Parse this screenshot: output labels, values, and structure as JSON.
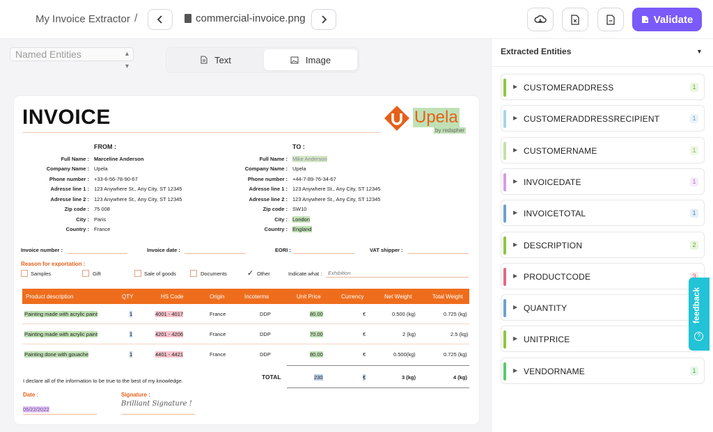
{
  "header": {
    "app_title": "My Invoice Extractor",
    "separator": "/",
    "file_name": "commercial-invoice.png",
    "prev_icon": "chevron-left-icon",
    "next_icon": "chevron-right-icon",
    "download_icon": "cloud-download-icon",
    "excel_icon": "excel-file-icon",
    "doc_icon": "document-icon",
    "validate_label": "Validate",
    "accent": "#7a5af8"
  },
  "view": {
    "select_value": "Named Entities",
    "tabs": [
      {
        "label": "Text",
        "icon": "text-file-icon"
      },
      {
        "label": "Image",
        "icon": "image-icon"
      }
    ]
  },
  "invoice": {
    "title": "INVOICE",
    "logo_text": "Upela",
    "logo_sub": "by redspher",
    "from_header": "FROM :",
    "to_header": "TO :",
    "field_labels": [
      "Full Name :",
      "Company Name :",
      "Phone number :",
      "Adresse line 1 :",
      "Adresse line 2 :",
      "Zip code :",
      "City :",
      "Country :"
    ],
    "from": [
      "Marceline Anderson",
      "Upela",
      "+33-6-56-78-90-67",
      "123 Anywhere St., Any City, ST 12345",
      "123 Anywhere St., Any City, ST 12345",
      "75 008",
      "Paris",
      "France"
    ],
    "to": [
      "Mike Anderson",
      "Upela",
      "+44-7-89-76-34-67",
      "123 Anywhere St., Any City, ST 12345",
      "123 Anywhere St., Any City, ST 12345",
      "SW10",
      "London",
      "England"
    ],
    "invoice_number_label": "Invoice number :",
    "invoice_date_label": "Invoice date :",
    "eori_label": "EORI :",
    "vat_label": "VAT shipper :",
    "reason_label": "Reason for exportation :",
    "reasons": [
      "Samples",
      "Gift",
      "Sale of goods",
      "Documents",
      "Other"
    ],
    "indicate_label": "Indicate what :",
    "indicate_value": "Exhibition",
    "columns": [
      "Product description",
      "QTY",
      "HS Code",
      "Origin",
      "Incoterms",
      "Unit Price",
      "Currency",
      "Net Weight",
      "Total Weight"
    ],
    "rows": [
      {
        "desc": "Painting made with acrylic paint",
        "qty": "1",
        "hs": "4001 - 4017",
        "origin": "France",
        "inco": "DDP",
        "price": "80.00",
        "currency": "€",
        "net": "0.500 (kg)",
        "total": "0.725 (kg)"
      },
      {
        "desc": "Painting made with acrylic paint",
        "qty": "1",
        "hs": "4201 - 4206",
        "origin": "France",
        "inco": "DDP",
        "price": "70.00",
        "currency": "€",
        "net": "2 (kg)",
        "total": "2.5 (kg)"
      },
      {
        "desc": "Painting done with gouache",
        "qty": "1",
        "hs": "4401 - 4421",
        "origin": "France",
        "inco": "DDP",
        "price": "80.00",
        "currency": "€",
        "net": "0.500(kg)",
        "total": "0.725 (kg)"
      }
    ],
    "declaration": "I declare all of the information to be true to the best of my knowledge.",
    "total_label": "TOTAL",
    "total_price": "230",
    "total_currency": "€",
    "total_net": "3 (kg)",
    "total_weight": "4 (kg)",
    "date_label": "Date :",
    "date_value": "05/22/2022",
    "signature_label": "Signature :",
    "signature_value": "Brilliant Signature !"
  },
  "panel": {
    "title": "Extracted Entities",
    "entities": [
      {
        "name": "CUSTOMERADDRESS",
        "count": "1",
        "color": "#8cc63f",
        "badge_bg": "#eaf6df",
        "badge_fg": "#6aa832"
      },
      {
        "name": "CUSTOMERADDRESSRECIPIENT",
        "count": "1",
        "color": "#a8d4e6",
        "badge_bg": "#eaf3f8",
        "badge_fg": "#6a9db5"
      },
      {
        "name": "CUSTOMERNAME",
        "count": "1",
        "color": "#c3e0a6",
        "badge_bg": "#eef7e5",
        "badge_fg": "#8ab866"
      },
      {
        "name": "INVOICEDATE",
        "count": "1",
        "color": "#d79ce8",
        "badge_bg": "#f6ebfa",
        "badge_fg": "#b070c8"
      },
      {
        "name": "INVOICETOTAL",
        "count": "1",
        "color": "#6ea0d2",
        "badge_bg": "#e7eff8",
        "badge_fg": "#5080b5"
      },
      {
        "name": "DESCRIPTION",
        "count": "2",
        "color": "#8cc63f",
        "badge_bg": "#eaf6df",
        "badge_fg": "#6aa832"
      },
      {
        "name": "PRODUCTCODE",
        "count": "3",
        "color": "#e06a86",
        "badge_bg": "#fbe8ed",
        "badge_fg": "#d0506e"
      },
      {
        "name": "QUANTITY",
        "count": "3",
        "color": "#6ea0d2",
        "badge_bg": "#e7eff8",
        "badge_fg": "#5080b5"
      },
      {
        "name": "UNITPRICE",
        "count": "3",
        "color": "#8cc63f",
        "badge_bg": "#eaf6df",
        "badge_fg": "#6aa832"
      },
      {
        "name": "VENDORNAME",
        "count": "1",
        "color": "#5cc86a",
        "badge_bg": "#e6f7e8",
        "badge_fg": "#40a84e"
      }
    ]
  },
  "feedback": {
    "label": "feedback",
    "icon": "feedback-icon",
    "color": "#22c3d6"
  }
}
